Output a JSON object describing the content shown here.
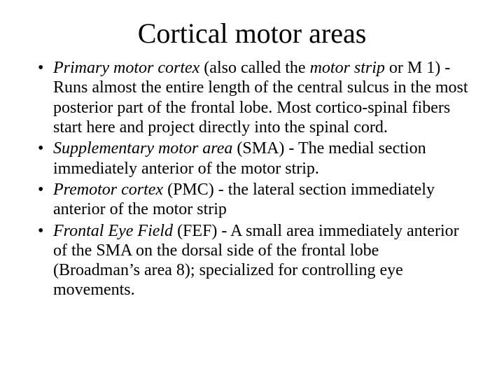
{
  "title": "Cortical motor areas",
  "bullets": [
    {
      "term": "Primary motor cortex",
      "mid": " (also called the ",
      "term2": "motor strip",
      "rest": " or M 1) - Runs almost the entire length of the central sulcus in the most posterior part of the frontal lobe. Most cortico-spinal fibers start here and project directly into the spinal cord."
    },
    {
      "term": "Supplementary motor area",
      "rest": " (SMA) - The medial section immediately anterior of the motor strip."
    },
    {
      "term": "Premotor cortex",
      "rest": " (PMC) - the lateral section immediately anterior of the motor strip"
    },
    {
      "term": "Frontal Eye Field",
      "rest": " (FEF) - A small area immediately anterior of the SMA on the dorsal side of the frontal lobe (Broadman’s area 8); specialized for controlling eye movements."
    }
  ],
  "colors": {
    "background": "#ffffff",
    "text": "#000000"
  },
  "typography": {
    "title_fontsize": 40,
    "body_fontsize": 24,
    "font_family": "Times New Roman"
  }
}
